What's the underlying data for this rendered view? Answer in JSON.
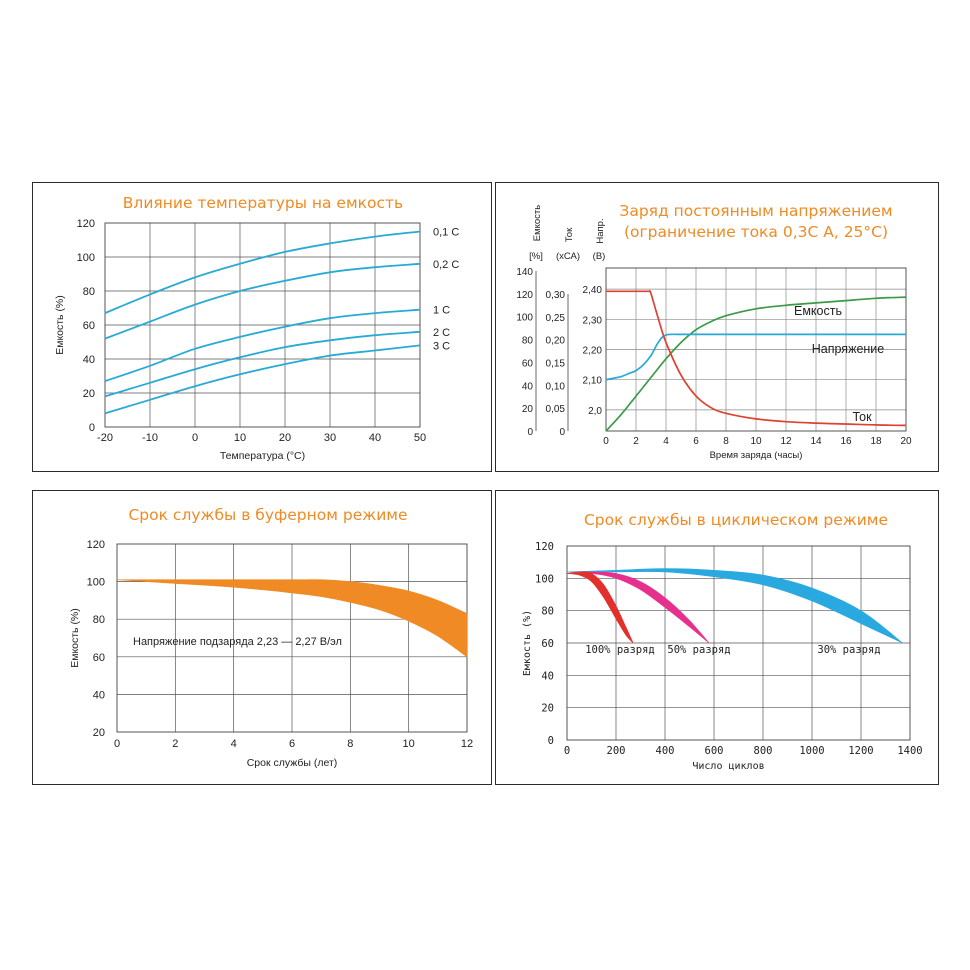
{
  "colors": {
    "title": "#f08a24",
    "cyan": "#29a9d6",
    "green": "#3a9a46",
    "red": "#e0412e",
    "orange": "#f08a24",
    "crimson": "#e2302d",
    "magenta": "#e5318d",
    "blue": "#29a9e0"
  },
  "chart_data": [
    {
      "type": "line",
      "title": "Влияние температуры на емкость",
      "xlabel": "Температура (°С)",
      "ylabel": "Емкость (%)",
      "xlim": [
        -20,
        50
      ],
      "ylim": [
        0,
        120
      ],
      "x_ticks": [
        "-20",
        "-10",
        "0",
        "10",
        "20",
        "30",
        "40",
        "50"
      ],
      "y_ticks": [
        "0",
        "20",
        "40",
        "60",
        "80",
        "100",
        "120"
      ],
      "x": [
        -20,
        -10,
        0,
        10,
        20,
        30,
        40,
        50
      ],
      "series": [
        {
          "name": "0,1 С",
          "values": [
            67,
            78,
            88,
            96,
            103,
            108,
            112,
            115
          ]
        },
        {
          "name": "0,2 С",
          "values": [
            52,
            62,
            72,
            80,
            86,
            91,
            94,
            96
          ]
        },
        {
          "name": "1 С",
          "values": [
            27,
            36,
            46,
            53,
            59,
            64,
            67,
            69
          ]
        },
        {
          "name": "2 С",
          "values": [
            18,
            26,
            34,
            41,
            47,
            51,
            54,
            56
          ]
        },
        {
          "name": "3 С",
          "values": [
            8,
            16,
            24,
            31,
            37,
            42,
            45,
            48
          ]
        }
      ],
      "grid": true
    },
    {
      "type": "line",
      "title": "Заряд постоянным напряжением",
      "subtitle": "(ограничение тока 0,3С А, 25°С)",
      "xlabel": "Время заряда (часы)",
      "axis_headers": {
        "capacity": "Емкость",
        "capacity_unit": "[%]",
        "current": "Ток",
        "current_unit": "(хСА)",
        "voltage": "Напр.",
        "voltage_unit": "(В)"
      },
      "xlim": [
        0,
        20
      ],
      "x_ticks": [
        "0",
        "2",
        "4",
        "6",
        "8",
        "10",
        "12",
        "14",
        "16",
        "18",
        "20"
      ],
      "capacity_ticks": [
        "0",
        "20",
        "40",
        "60",
        "80",
        "100",
        "120",
        "140"
      ],
      "current_ticks": [
        "0",
        "0,05",
        "0,10",
        "0,15",
        "0,20",
        "0,25",
        "0,30"
      ],
      "voltage_ticks": [
        "2,0",
        "2,10",
        "2,20",
        "2,30",
        "2,40"
      ],
      "capacity_range": [
        0,
        140
      ],
      "current_range": [
        0,
        0.35
      ],
      "voltage_range": [
        1.93,
        2.47
      ],
      "series": [
        {
          "name": "Емкость",
          "axis": "capacity",
          "x": [
            0,
            1,
            2,
            3,
            4,
            5,
            6,
            7,
            8,
            10,
            12,
            14,
            16,
            18,
            20
          ],
          "values": [
            0,
            14,
            30,
            46,
            62,
            76,
            87,
            94,
            99,
            105,
            108,
            110,
            112,
            114,
            115
          ]
        },
        {
          "name": "Напряжение",
          "axis": "voltage",
          "x": [
            0,
            0.5,
            1,
            1.5,
            2,
            2.5,
            3,
            3.5,
            4,
            5,
            6,
            8,
            10,
            14,
            20
          ],
          "values": [
            2.1,
            2.105,
            2.11,
            2.12,
            2.13,
            2.15,
            2.18,
            2.225,
            2.248,
            2.25,
            2.25,
            2.25,
            2.25,
            2.25,
            2.25
          ]
        },
        {
          "name": "Ток",
          "axis": "current",
          "x": [
            0,
            2.9,
            3.0,
            3.5,
            4,
            5,
            6,
            7,
            8,
            10,
            12,
            14,
            16,
            18,
            20
          ],
          "values": [
            0.3,
            0.3,
            0.295,
            0.24,
            0.19,
            0.12,
            0.075,
            0.05,
            0.038,
            0.026,
            0.02,
            0.017,
            0.015,
            0.013,
            0.012
          ]
        }
      ],
      "grid": true
    },
    {
      "type": "area",
      "title": "Срок службы в буферном режиме",
      "xlabel": "Срок службы (лет)",
      "ylabel": "Емкость (%)",
      "annotation": "Напряжение подзаряда 2,23 — 2,27 В/эл",
      "xlim": [
        0,
        12
      ],
      "ylim": [
        20,
        120
      ],
      "x_ticks": [
        "0",
        "2",
        "4",
        "6",
        "8",
        "10",
        "12"
      ],
      "y_ticks": [
        "20",
        "40",
        "60",
        "80",
        "100",
        "120"
      ],
      "band": {
        "x": [
          0,
          2,
          4,
          6,
          7,
          8,
          9,
          10,
          11,
          12
        ],
        "upper": [
          101,
          101,
          101,
          101,
          101,
          100,
          98,
          95,
          90,
          83
        ],
        "lower": [
          101,
          99,
          97,
          94,
          92,
          89,
          85,
          79,
          71,
          60
        ]
      },
      "grid": true
    },
    {
      "type": "area",
      "title": "Срок службы в циклическом режиме",
      "xlabel": "Число циклов",
      "ylabel": "Емкость (%)",
      "xlim": [
        0,
        1400
      ],
      "ylim": [
        0,
        120
      ],
      "x_ticks": [
        "0",
        "200",
        "400",
        "600",
        "800",
        "1000",
        "1200",
        "1400"
      ],
      "y_ticks": [
        "0",
        "20",
        "40",
        "60",
        "80",
        "100",
        "120"
      ],
      "series": [
        {
          "name": "100% разряд",
          "x": [
            0,
            50,
            100,
            150,
            200,
            240,
            270
          ],
          "upper": [
            103,
            104,
            103,
            96,
            83,
            70,
            60
          ],
          "lower": [
            103,
            102,
            98,
            88,
            75,
            65,
            60
          ]
        },
        {
          "name": "50% разряд",
          "x": [
            0,
            100,
            200,
            300,
            400,
            500,
            580
          ],
          "upper": [
            103,
            104,
            103,
            98,
            88,
            74,
            60
          ],
          "lower": [
            103,
            103,
            100,
            93,
            82,
            70,
            60
          ]
        },
        {
          "name": "30% разряд",
          "x": [
            0,
            200,
            400,
            600,
            800,
            1000,
            1200,
            1370
          ],
          "upper": [
            104,
            105,
            106,
            105,
            102,
            94,
            80,
            60
          ],
          "lower": [
            104,
            104,
            104,
            101,
            96,
            86,
            72,
            60
          ]
        }
      ],
      "grid": true
    }
  ]
}
